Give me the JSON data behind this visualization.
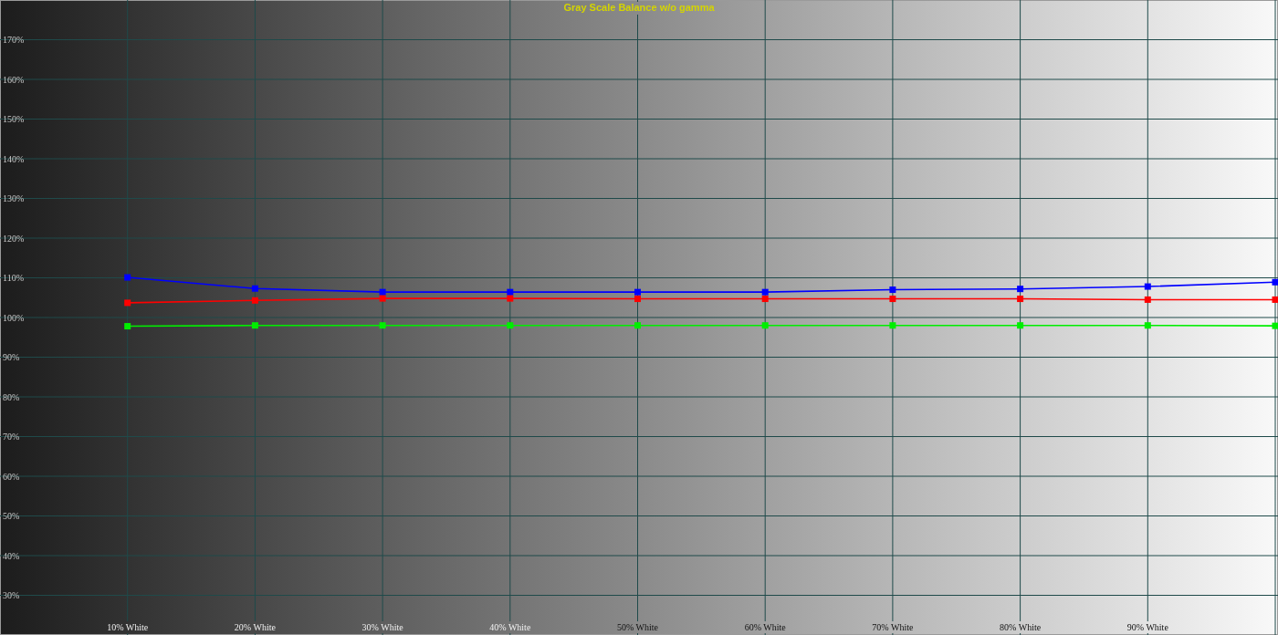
{
  "chart_data": {
    "type": "line",
    "title": "Gray Scale Balance w/o gamma",
    "categories": [
      "10% White",
      "20% White",
      "30% White",
      "40% White",
      "50% White",
      "60% White",
      "70% White",
      "80% White",
      "90% White",
      null
    ],
    "series": [
      {
        "color": "#0000ff",
        "values": [
          110.1,
          107.3,
          106.4,
          106.4,
          106.4,
          106.4,
          107.0,
          107.2,
          107.8,
          108.9
        ]
      },
      {
        "color": "#ff0000",
        "values": [
          103.7,
          104.3,
          104.8,
          104.8,
          104.7,
          104.7,
          104.7,
          104.7,
          104.5,
          104.5
        ]
      },
      {
        "color": "#00ee00",
        "values": [
          97.8,
          98.0,
          98.0,
          98.0,
          98.0,
          98.0,
          98.0,
          98.0,
          98.0,
          97.9
        ]
      }
    ],
    "ylim": [
      20,
      180
    ],
    "yticks": [
      {
        "value": 30,
        "label": "30%"
      },
      {
        "value": 40,
        "label": "40%"
      },
      {
        "value": 50,
        "label": "50%"
      },
      {
        "value": 60,
        "label": "60%"
      },
      {
        "value": 70,
        "label": "70%"
      },
      {
        "value": 80,
        "label": "80%"
      },
      {
        "value": 90,
        "label": "90%"
      },
      {
        "value": 100,
        "label": "100%"
      },
      {
        "value": 110,
        "label": "110%"
      },
      {
        "value": 120,
        "label": "120%"
      },
      {
        "value": 130,
        "label": "130%"
      },
      {
        "value": 140,
        "label": "140%"
      },
      {
        "value": 150,
        "label": "150%"
      },
      {
        "value": 160,
        "label": "160%"
      },
      {
        "value": 170,
        "label": "170%"
      }
    ],
    "grid": true,
    "marker": "square",
    "line_style": "solid"
  }
}
